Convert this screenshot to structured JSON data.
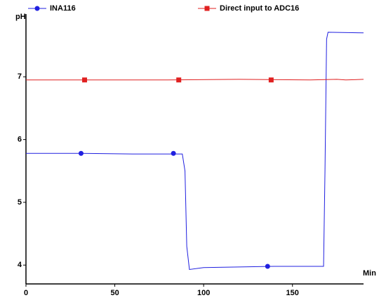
{
  "chart_data": {
    "type": "line",
    "y_label": "pH",
    "x_label": "Min",
    "xlim": [
      0,
      190
    ],
    "ylim": [
      3.7,
      8.0
    ],
    "xticks": [
      0,
      50,
      100,
      150
    ],
    "yticks": [
      4,
      5,
      6,
      7
    ],
    "series": [
      {
        "name": "INA116",
        "color": "#2020e0",
        "marker": "circle",
        "x": [
          0,
          30,
          60,
          88,
          89.5,
          90.5,
          92,
          100,
          120,
          140,
          160,
          167.5,
          168.3,
          169.2,
          170,
          190
        ],
        "values": [
          5.78,
          5.78,
          5.77,
          5.77,
          5.5,
          4.3,
          3.93,
          3.96,
          3.97,
          3.98,
          3.98,
          3.98,
          5.5,
          7.6,
          7.71,
          7.7
        ],
        "markers": {
          "x": [
            31,
            83,
            136
          ],
          "values": [
            5.78,
            5.78,
            3.98
          ]
        }
      },
      {
        "name": "Direct input to ADC16",
        "color": "#e02020",
        "marker": "square",
        "x": [
          0,
          40,
          80,
          120,
          160,
          175,
          180,
          190
        ],
        "values": [
          6.95,
          6.95,
          6.95,
          6.96,
          6.95,
          6.96,
          6.95,
          6.96
        ],
        "markers": {
          "x": [
            33,
            86,
            138
          ],
          "values": [
            6.95,
            6.95,
            6.95
          ]
        }
      }
    ]
  }
}
